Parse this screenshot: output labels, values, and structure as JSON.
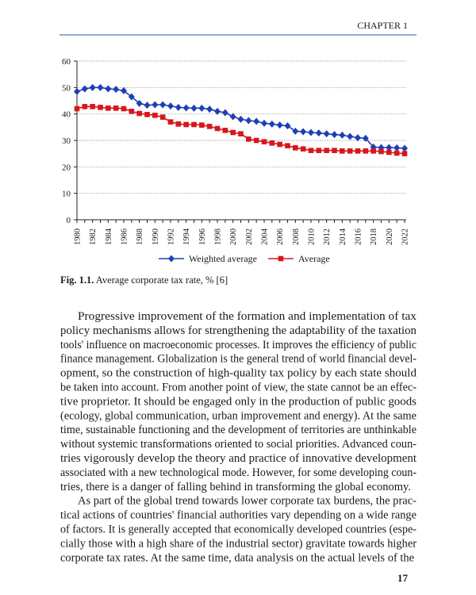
{
  "header": {
    "chapter": "CHAPTER 1"
  },
  "chart_data": {
    "type": "line",
    "x": [
      1980,
      1981,
      1982,
      1983,
      1984,
      1985,
      1986,
      1987,
      1988,
      1989,
      1990,
      1991,
      1992,
      1993,
      1994,
      1995,
      1996,
      1997,
      1998,
      1999,
      2000,
      2001,
      2002,
      2003,
      2004,
      2005,
      2006,
      2007,
      2008,
      2009,
      2010,
      2011,
      2012,
      2013,
      2014,
      2015,
      2016,
      2017,
      2018,
      2019,
      2020,
      2021,
      2022
    ],
    "xlim": [
      1980,
      2022
    ],
    "xticks": [
      1980,
      1982,
      1984,
      1986,
      1988,
      1990,
      1992,
      1994,
      1996,
      1998,
      2000,
      2002,
      2004,
      2006,
      2008,
      2010,
      2012,
      2014,
      2016,
      2018,
      2020,
      2022
    ],
    "ylim": [
      0,
      60
    ],
    "yticks": [
      0,
      10,
      20,
      30,
      40,
      50,
      60
    ],
    "grid": true,
    "series": [
      {
        "name": "Weighted average",
        "color": "#1f3fb5",
        "marker": "diamond",
        "values": [
          48.5,
          49.5,
          50,
          50,
          49.5,
          49.3,
          48.8,
          46.5,
          44,
          43.3,
          43.5,
          43.5,
          43,
          42.5,
          42.3,
          42.2,
          42.2,
          41.8,
          41,
          40.5,
          39,
          38,
          37.5,
          37.2,
          36.5,
          36.2,
          35.8,
          35.5,
          33.5,
          33.3,
          33,
          32.8,
          32.5,
          32.2,
          32,
          31.5,
          31,
          30.8,
          27.5,
          27.3,
          27.3,
          27.2,
          27
        ]
      },
      {
        "name": "Average",
        "color": "#d8161d",
        "marker": "square",
        "values": [
          42,
          42.8,
          42.8,
          42.5,
          42.2,
          42.2,
          42,
          41,
          40.2,
          39.8,
          39.5,
          38.8,
          37,
          36.2,
          36,
          36,
          35.8,
          35.3,
          34.5,
          33.8,
          33,
          32.5,
          30.5,
          30,
          29.5,
          29,
          28.5,
          28,
          27.2,
          26.8,
          26.2,
          26.2,
          26.2,
          26.2,
          26,
          26,
          26,
          26,
          26,
          25.8,
          25.5,
          25.2,
          25
        ]
      }
    ]
  },
  "caption": {
    "label": "Fig. 1.1.",
    "text": "Average corporate tax rate, % [6]"
  },
  "body": {
    "paragraphs": [
      [
        "Progressive improvement of the formation and implementation of tax",
        "policy mechanisms allows for strengthening the adaptability of the taxation",
        "tools' influence on macroeconomic processes. It improves the efficiency of public",
        "finance management. Globalization is the general trend of world financial devel-",
        "opment, so the construction of high-quality tax policy by each state should",
        "be taken into account. From another point of view, the state cannot be an effec-",
        "tive proprietor. It should be engaged only in the production of public goods",
        "(ecology, global communication, urban improvement and energy). At the same",
        "time, sustainable functioning and the development of territories are unthinkable",
        "without systemic transformations oriented to social priorities. Advanced coun-",
        "tries vigorously develop the theory and practice of innovative development",
        "associated with a new technological mode. However, for some developing coun-",
        "tries, there is a danger of falling behind in transforming the global economy."
      ],
      [
        "As part of the global trend towards lower corporate tax burdens, the prac-",
        "tical actions of countries' financial authorities vary depending on a wide range",
        "of factors. It is generally accepted that economically developed countries (espe-",
        "cially those with a high share of the industrial sector) gravitate towards higher",
        "corporate tax rates. At the same time, data analysis on the actual levels of the"
      ]
    ]
  },
  "page_number": 17
}
